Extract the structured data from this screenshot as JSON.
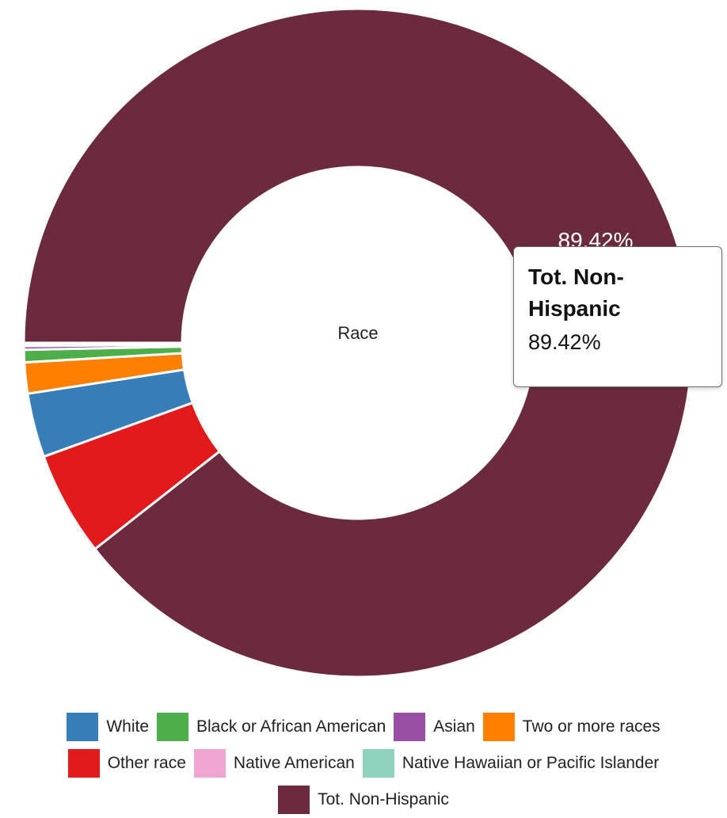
{
  "chart_data": {
    "type": "pie",
    "variant": "donut",
    "center_label": "Race",
    "slices": [
      {
        "name": "Tot. Non-Hispanic",
        "value": 89.42,
        "color": "#6b2b3d"
      },
      {
        "name": "Other race",
        "value": 5.05,
        "color": "#e31a1c"
      },
      {
        "name": "White",
        "value": 3.1,
        "color": "#377eb8"
      },
      {
        "name": "Two or more races",
        "value": 1.5,
        "color": "#ff7f00"
      },
      {
        "name": "Black or African American",
        "value": 0.6,
        "color": "#4daf4a"
      },
      {
        "name": "Asian",
        "value": 0.18,
        "color": "#984ea3"
      },
      {
        "name": "Native American",
        "value": 0.1,
        "color": "#f0a6d0"
      },
      {
        "name": "Native Hawaiian or Pacific Islander",
        "value": 0.05,
        "color": "#8fd3bf"
      }
    ],
    "slice_label": {
      "series": "Tot. Non-Hispanic",
      "text": "89.42%"
    },
    "legend_position": "bottom"
  },
  "tooltip": {
    "title": "Tot. Non-Hispanic",
    "value": "89.42%"
  },
  "legend": {
    "rows": [
      [
        {
          "label": "White",
          "color": "#377eb8"
        },
        {
          "label": "Black or African American",
          "color": "#4daf4a"
        },
        {
          "label": "Asian",
          "color": "#984ea3"
        },
        {
          "label": "Two or more races",
          "color": "#ff7f00"
        }
      ],
      [
        {
          "label": "Other race",
          "color": "#e31a1c"
        },
        {
          "label": "Native American",
          "color": "#f0a6d0"
        },
        {
          "label": "Native Hawaiian or Pacific Islander",
          "color": "#8fd3bf"
        }
      ],
      [
        {
          "label": "Tot. Non-Hispanic",
          "color": "#6b2b3d"
        }
      ]
    ]
  }
}
